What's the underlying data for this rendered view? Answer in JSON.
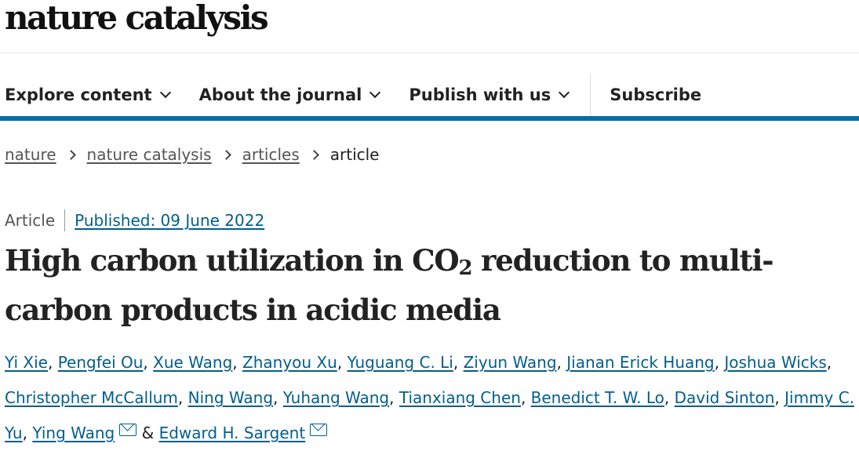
{
  "header": {
    "logo": "nature catalysis"
  },
  "nav": {
    "items": [
      {
        "label": "Explore content",
        "dropdown": true
      },
      {
        "label": "About the journal",
        "dropdown": true
      },
      {
        "label": "Publish with us",
        "dropdown": true
      }
    ],
    "subscribe": "Subscribe",
    "accent_color": "#0070a8"
  },
  "breadcrumb": [
    "nature",
    "nature catalysis",
    "articles",
    "article"
  ],
  "article": {
    "type": "Article",
    "published": "Published: 09 June 2022",
    "title_part1": "High carbon utilization in CO",
    "title_sub": "2",
    "title_part2": " reduction to multi-carbon products in acidic media",
    "authors": [
      "Yi Xie",
      "Pengfei Ou",
      "Xue Wang",
      "Zhanyou Xu",
      "Yuguang C. Li",
      "Ziyun Wang",
      "Jianan Erick Huang",
      "Joshua Wicks",
      "Christopher McCallum",
      "Ning Wang",
      "Yuhang Wang",
      "Tianxiang Chen",
      "Benedict T. W. Lo",
      "David Sinton",
      "Jimmy C. Yu",
      "Ying Wang",
      "Edward H. Sargent"
    ],
    "ampersand": "&",
    "link_color": "#025e8d"
  }
}
